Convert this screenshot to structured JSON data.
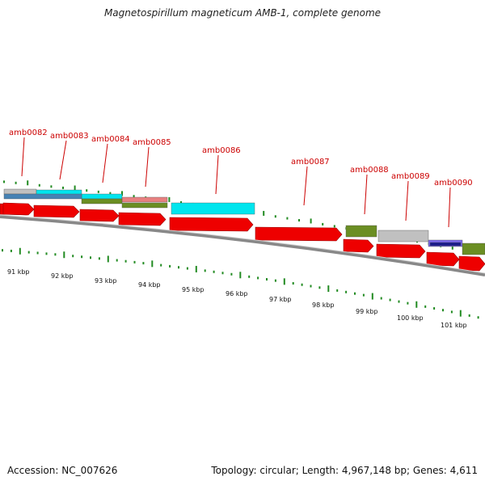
{
  "title": "Magnetospirillum magneticum AMB-1, complete genome",
  "footer": {
    "accession": "Accession: NC_007626",
    "summary": "Topology: circular; Length: 4,967,148 bp; Genes: 4,611"
  },
  "genes": [
    {
      "name": "amb0082"
    },
    {
      "name": "amb0083"
    },
    {
      "name": "amb0084"
    },
    {
      "name": "amb0085"
    },
    {
      "name": "amb0086"
    },
    {
      "name": "amb0087"
    },
    {
      "name": "amb0088"
    },
    {
      "name": "amb0089"
    },
    {
      "name": "amb0090"
    }
  ],
  "scale": {
    "labels": [
      "91 kbp",
      "92 kbp",
      "93 kbp",
      "94 kbp",
      "95 kbp",
      "96 kbp",
      "97 kbp",
      "98 kbp",
      "99 kbp",
      "100 kbp",
      "101 kbp"
    ]
  },
  "colors": {
    "cds": "#ee0000",
    "tick": "#228b22",
    "backbone": "#888888",
    "label": "#cc0000",
    "cyan": "#00e5ee",
    "olive": "#6b8e23",
    "grey": "#c0c0c0",
    "blue": "#4682b4",
    "salmon": "#e88080",
    "navy": "#1a1a8c",
    "slate": "#7b68ee"
  }
}
